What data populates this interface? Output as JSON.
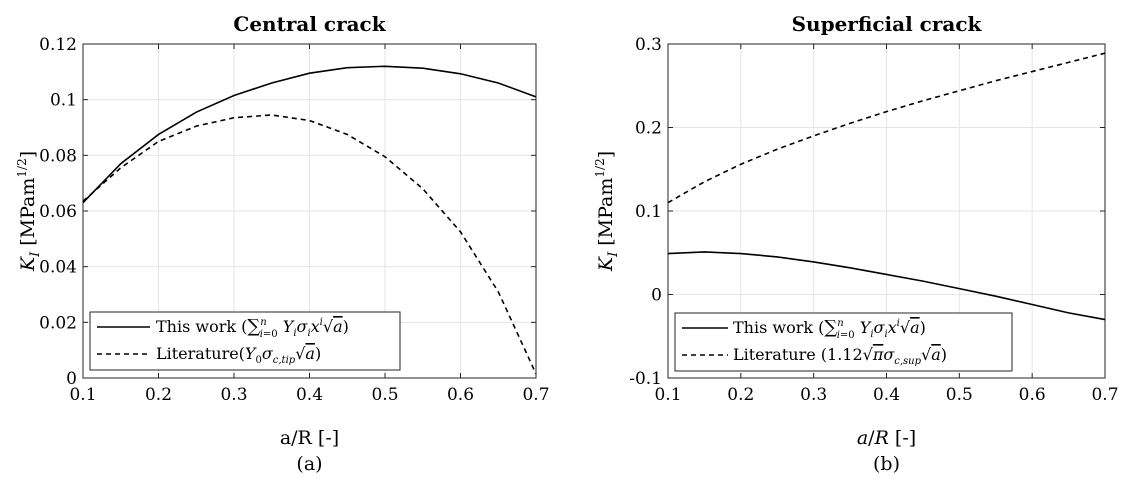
{
  "chart_data": [
    {
      "type": "line",
      "title": "Central crack",
      "xlabel": "a/R [-]",
      "ylabel": "K_I [MPam^1/2]",
      "panel_label": "(a)",
      "xlim": [
        0.1,
        0.7
      ],
      "ylim": [
        0,
        0.12
      ],
      "xticks": [
        0.1,
        0.2,
        0.3,
        0.4,
        0.5,
        0.6,
        0.7
      ],
      "xtick_labels": [
        "0.1",
        "0.2",
        "0.3",
        "0.4",
        "0.5",
        "0.6",
        "0.7"
      ],
      "yticks": [
        0,
        0.02,
        0.04,
        0.06,
        0.08,
        0.1,
        0.12
      ],
      "ytick_labels": [
        "0",
        "0.02",
        "0.04",
        "0.06",
        "0.08",
        "0.1",
        "0.12"
      ],
      "grid": true,
      "legend_position": "bottom-left",
      "x": [
        0.1,
        0.15,
        0.2,
        0.25,
        0.3,
        0.35,
        0.4,
        0.45,
        0.5,
        0.55,
        0.6,
        0.65,
        0.7
      ],
      "series": [
        {
          "name": "This work (Σ_{i=0}^n Y_i σ_i x^i √a)",
          "style": "solid",
          "values": [
            0.063,
            0.077,
            0.0875,
            0.0955,
            0.1015,
            0.106,
            0.1095,
            0.1115,
            0.112,
            0.1113,
            0.1093,
            0.106,
            0.101
          ]
        },
        {
          "name": "Literature(Y_0 σ_c,tip √a)",
          "style": "dashed",
          "values": [
            0.0635,
            0.0755,
            0.085,
            0.0905,
            0.0935,
            0.0945,
            0.0925,
            0.0875,
            0.0795,
            0.068,
            0.0525,
            0.031,
            0.0015
          ]
        }
      ]
    },
    {
      "type": "line",
      "title": "Superficial crack",
      "xlabel": "a/R [-]",
      "ylabel": "K_I [MPam^1/2]",
      "panel_label": "(b)",
      "xlim": [
        0.1,
        0.7
      ],
      "ylim": [
        -0.1,
        0.3
      ],
      "xticks": [
        0.1,
        0.2,
        0.3,
        0.4,
        0.5,
        0.6,
        0.7
      ],
      "xtick_labels": [
        "0.1",
        "0.2",
        "0.3",
        "0.4",
        "0.5",
        "0.6",
        "0.7"
      ],
      "yticks": [
        -0.1,
        0,
        0.1,
        0.2,
        0.3
      ],
      "ytick_labels": [
        "-0.1",
        "0",
        "0.1",
        "0.2",
        "0.3"
      ],
      "grid": true,
      "legend_position": "bottom-left",
      "x": [
        0.1,
        0.15,
        0.2,
        0.25,
        0.3,
        0.35,
        0.4,
        0.45,
        0.5,
        0.55,
        0.6,
        0.65,
        0.7
      ],
      "series": [
        {
          "name": "This work (Σ_{i=0}^n Y_i σ_i x^i √a)",
          "style": "solid",
          "values": [
            0.049,
            0.051,
            0.049,
            0.045,
            0.039,
            0.032,
            0.024,
            0.016,
            0.007,
            -0.002,
            -0.012,
            -0.022,
            -0.03
          ]
        },
        {
          "name": "Literature (1.12√π σ_c,sup √a)",
          "style": "dashed",
          "values": [
            0.11,
            0.135,
            0.156,
            0.174,
            0.19,
            0.205,
            0.219,
            0.232,
            0.244,
            0.256,
            0.267,
            0.278,
            0.289
          ]
        }
      ]
    }
  ]
}
